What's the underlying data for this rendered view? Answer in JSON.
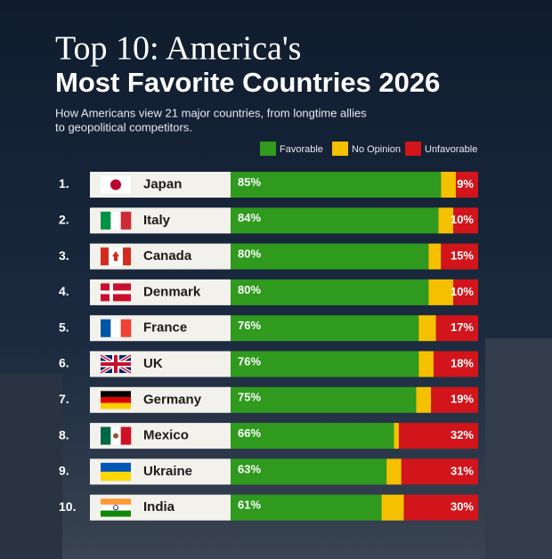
{
  "chart_data": {
    "type": "stacked-bar",
    "title": [
      "Top 10: America's",
      "Most Favorite Countries 2026"
    ],
    "subtitle": [
      "How Americans view 21 major countries, from longtime allies",
      "to geopolitical competitors."
    ],
    "ranks": [
      "1.",
      "2.",
      "3.",
      "4.",
      "5.",
      "6.",
      "7.",
      "8.",
      "9.",
      "10."
    ],
    "categories": [
      "Japan",
      "Italy",
      "Canada",
      "Denmark",
      "France",
      "UK",
      "Germany",
      "Mexico",
      "Ukraine",
      "India"
    ],
    "xlim": [
      0,
      100
    ],
    "series": [
      {
        "name": "Favorable",
        "color": "#2f9a1e",
        "values": [
          85,
          84,
          80,
          80,
          76,
          76,
          75,
          66,
          63,
          61
        ],
        "value_labels": [
          "85%",
          "84%",
          "80%",
          "80%",
          "76%",
          "76%",
          "75%",
          "66%",
          "63%",
          "61%"
        ]
      },
      {
        "name": "No Opinion",
        "color": "#f5c000",
        "values": [
          6,
          6,
          5,
          10,
          7,
          6,
          6,
          2,
          6,
          9
        ]
      },
      {
        "name": "Unfavorable",
        "color": "#d1151b",
        "values": [
          9,
          10,
          15,
          10,
          17,
          18,
          19,
          32,
          31,
          30
        ],
        "value_labels": [
          "9%",
          "10%",
          "15%",
          "10%",
          "17%",
          "18%",
          "19%",
          "32%",
          "31%",
          "30%"
        ]
      }
    ]
  }
}
